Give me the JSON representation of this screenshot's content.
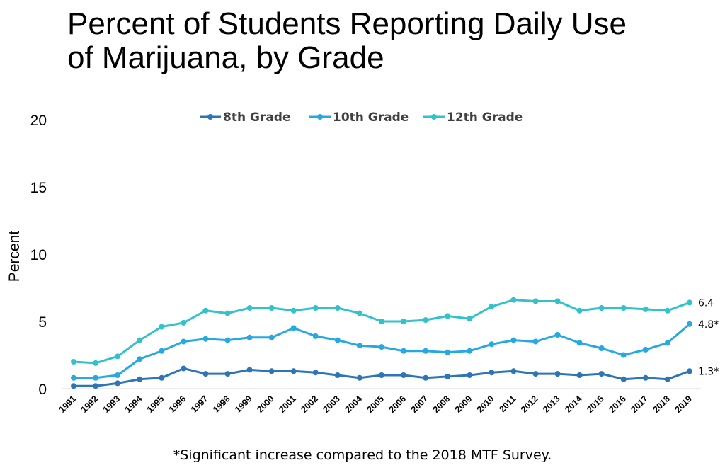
{
  "title": {
    "line1": "Percent of Students Reporting Daily Use",
    "line2": "of Marijuana, by Grade"
  },
  "footnote": "*Significant increase compared to the 2018 MTF Survey.",
  "chart_data": {
    "type": "line",
    "title": "Percent of Students Reporting Daily Use of Marijuana, by Grade",
    "xlabel": "",
    "ylabel": "Percent",
    "ylim": [
      0,
      20
    ],
    "yticks": [
      0,
      5,
      10,
      15,
      20
    ],
    "grid": false,
    "legend": "top-center",
    "categories": [
      "1991",
      "1992",
      "1993",
      "1994",
      "1995",
      "1996",
      "1997",
      "1998",
      "1999",
      "2000",
      "2001",
      "2002",
      "2003",
      "2004",
      "2005",
      "2006",
      "2007",
      "2008",
      "2009",
      "2010",
      "2011",
      "2012",
      "2013",
      "2014",
      "2015",
      "2016",
      "2017",
      "2018",
      "2019"
    ],
    "series": [
      {
        "name": "8th Grade",
        "color": "#2e75b6",
        "values": [
          0.2,
          0.2,
          0.4,
          0.7,
          0.8,
          1.5,
          1.1,
          1.1,
          1.4,
          1.3,
          1.3,
          1.2,
          1.0,
          0.8,
          1.0,
          1.0,
          0.8,
          0.9,
          1.0,
          1.2,
          1.3,
          1.1,
          1.1,
          1.0,
          1.1,
          0.7,
          0.8,
          0.7,
          1.3
        ],
        "end_label": "1.3*"
      },
      {
        "name": "10th Grade",
        "color": "#27a8e0",
        "values": [
          0.8,
          0.8,
          1.0,
          2.2,
          2.8,
          3.5,
          3.7,
          3.6,
          3.8,
          3.8,
          4.5,
          3.9,
          3.6,
          3.2,
          3.1,
          2.8,
          2.8,
          2.7,
          2.8,
          3.3,
          3.6,
          3.5,
          4.0,
          3.4,
          3.0,
          2.5,
          2.9,
          3.4,
          4.8
        ],
        "end_label": "4.8*"
      },
      {
        "name": "12th Grade",
        "color": "#33c2cc",
        "values": [
          2.0,
          1.9,
          2.4,
          3.6,
          4.6,
          4.9,
          5.8,
          5.6,
          6.0,
          6.0,
          5.8,
          6.0,
          6.0,
          5.6,
          5.0,
          5.0,
          5.1,
          5.4,
          5.2,
          6.1,
          6.6,
          6.5,
          6.5,
          5.8,
          6.0,
          6.0,
          5.9,
          5.8,
          6.4
        ],
        "end_label": "6.4"
      }
    ]
  }
}
